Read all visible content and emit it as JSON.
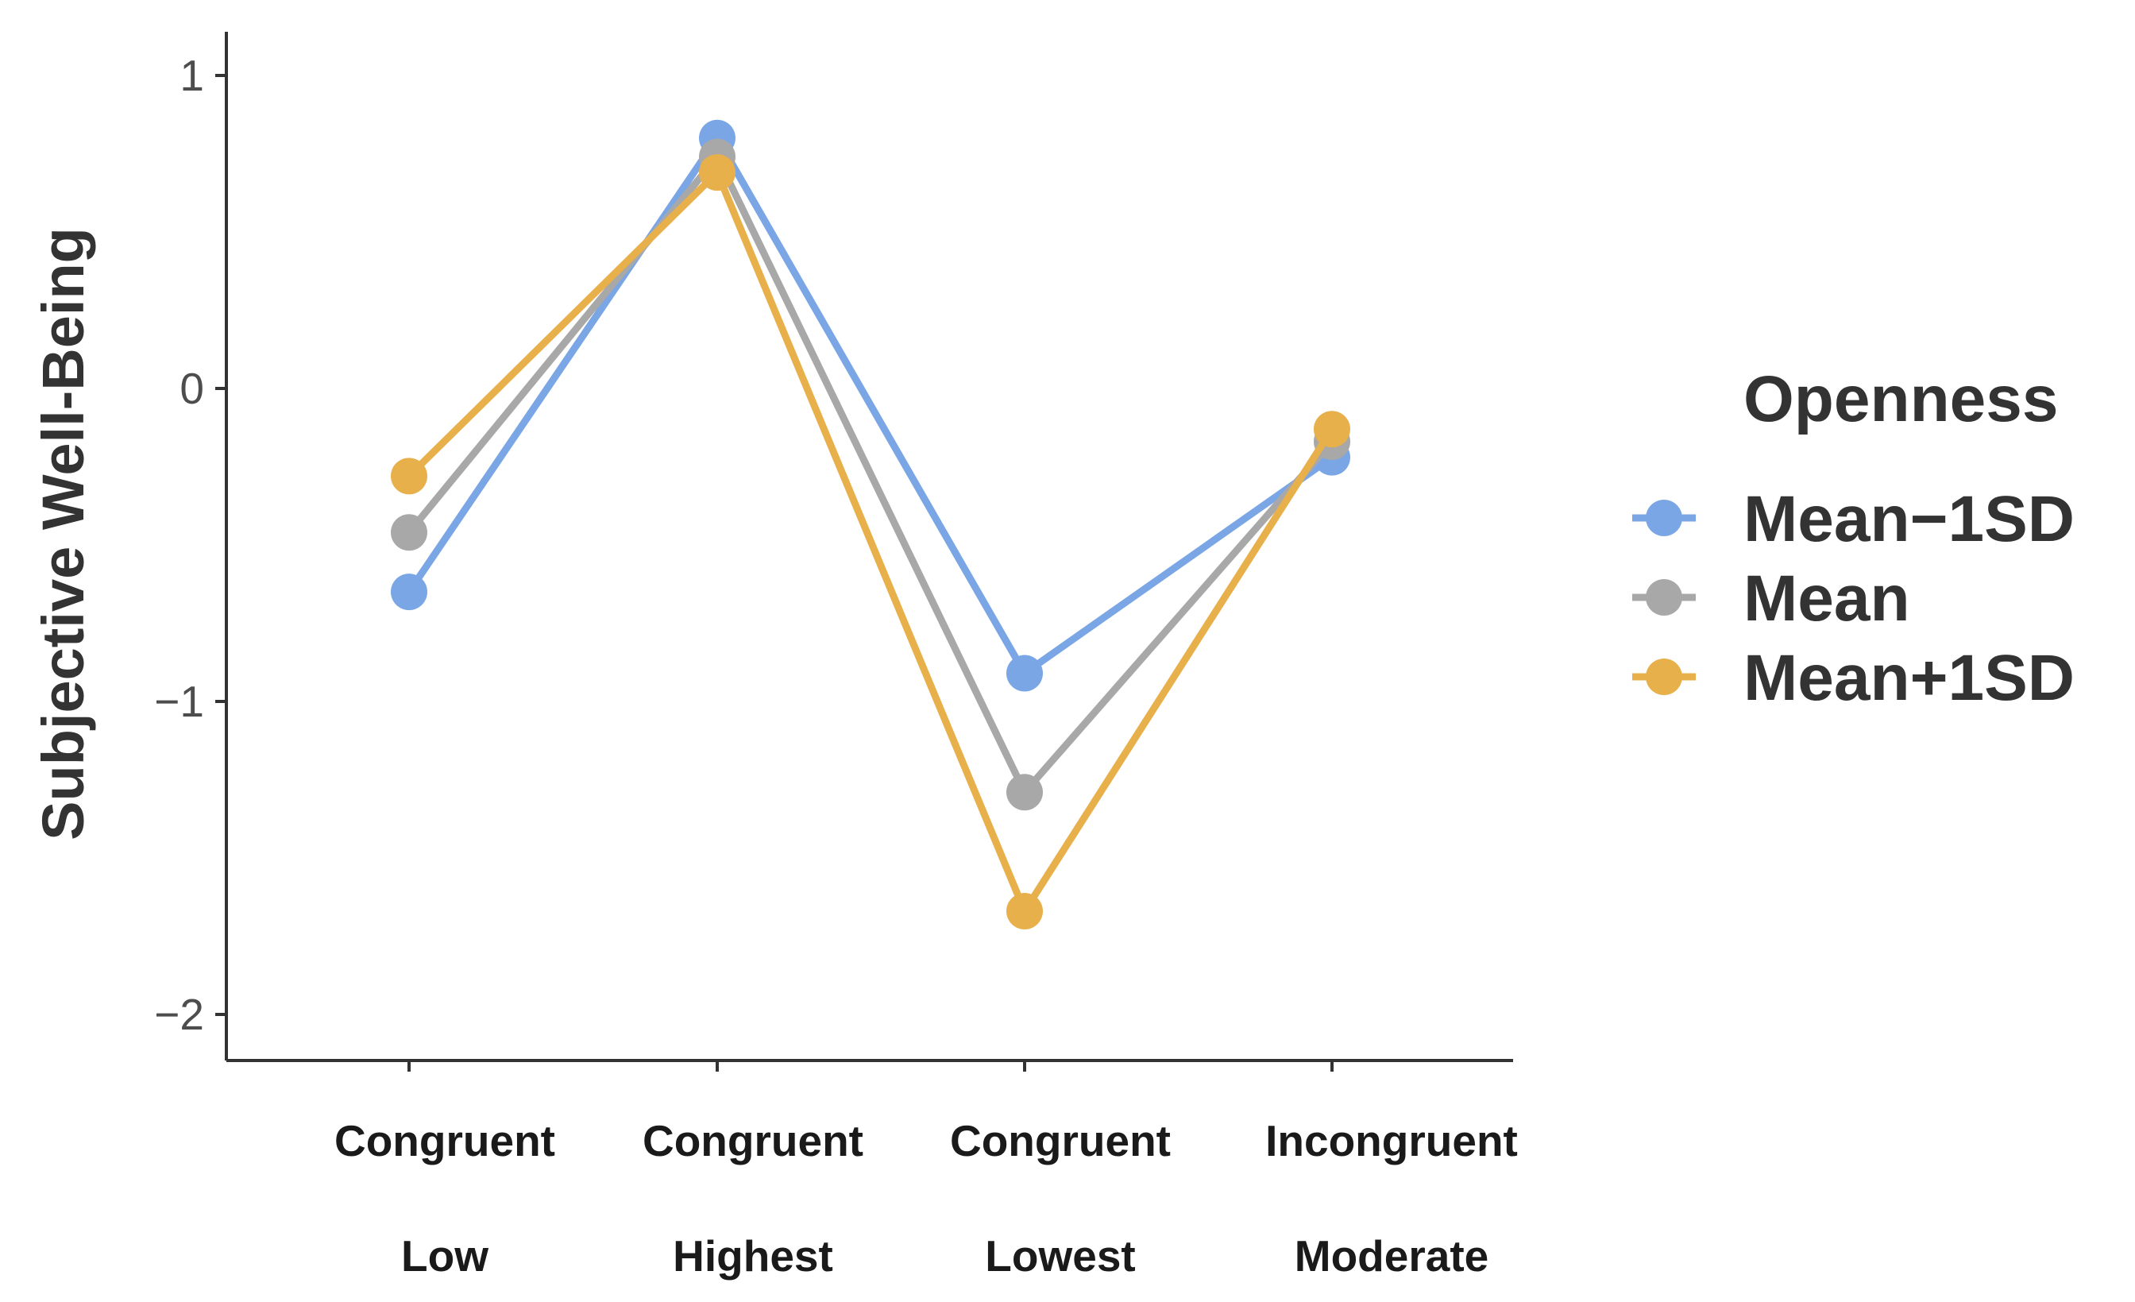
{
  "chart_data": {
    "type": "line",
    "title": "",
    "xlabel": "",
    "ylabel": "Subjective Well-Being",
    "ylim": [
      -2.15,
      1.2
    ],
    "yticks": [
      1,
      0,
      -1,
      -2
    ],
    "ytick_labels": [
      "1",
      "0",
      "−1",
      "−2"
    ],
    "categories": [
      {
        "line1": "Congruent",
        "line2": "Low"
      },
      {
        "line1": "Congruent",
        "line2": "Highest"
      },
      {
        "line1": "Congruent",
        "line2": "Lowest"
      },
      {
        "line1": "Incongruent",
        "line2": "Moderate"
      }
    ],
    "legend_title": "Openness",
    "legend_position": "right",
    "grid": false,
    "series": [
      {
        "name": "Mean−1SD",
        "color": "#7aa6e6",
        "values": [
          -0.65,
          0.8,
          -0.91,
          -0.22
        ]
      },
      {
        "name": "Mean",
        "color": "#a8a8a8",
        "values": [
          -0.46,
          0.74,
          -1.29,
          -0.17
        ]
      },
      {
        "name": "Mean+1SD",
        "color": "#e8b04a",
        "values": [
          -0.28,
          0.69,
          -1.67,
          -0.13
        ]
      }
    ]
  }
}
